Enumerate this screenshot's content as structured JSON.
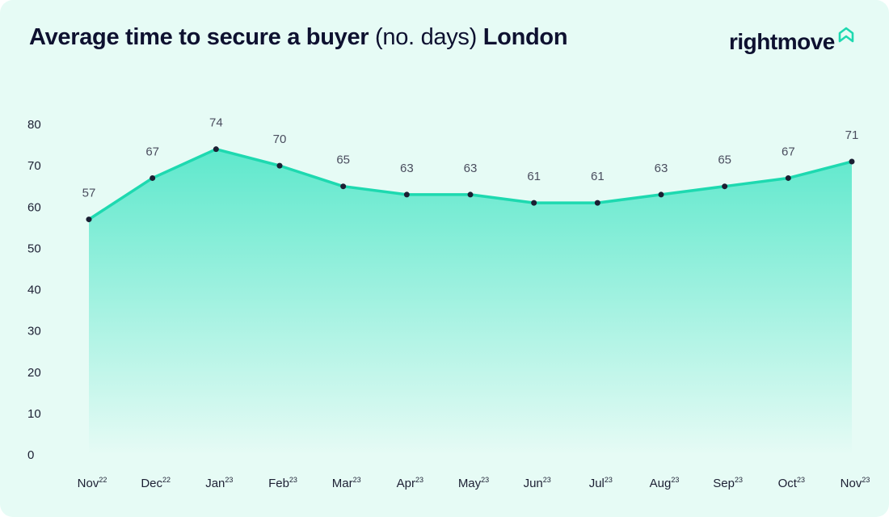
{
  "title": {
    "bold_part": "Average time to secure a buyer",
    "light_part": "(no. days)",
    "location": "London"
  },
  "logo": {
    "text": "rightmove",
    "icon": "house-icon"
  },
  "colors": {
    "line": "#1ed9b0",
    "fill_top": "#5ee8cc",
    "fill_bottom": "#e6fbf5",
    "point": "#1c1f33",
    "background": "#e6fbf5"
  },
  "chart_data": {
    "type": "area",
    "title": "Average time to secure a buyer (no. days) London",
    "categories": [
      {
        "month": "Nov",
        "year": "22"
      },
      {
        "month": "Dec",
        "year": "22"
      },
      {
        "month": "Jan",
        "year": "23"
      },
      {
        "month": "Feb",
        "year": "23"
      },
      {
        "month": "Mar",
        "year": "23"
      },
      {
        "month": "Apr",
        "year": "23"
      },
      {
        "month": "May",
        "year": "23"
      },
      {
        "month": "Jun",
        "year": "23"
      },
      {
        "month": "Jul",
        "year": "23"
      },
      {
        "month": "Aug",
        "year": "23"
      },
      {
        "month": "Sep",
        "year": "23"
      },
      {
        "month": "Oct",
        "year": "23"
      },
      {
        "month": "Nov",
        "year": "23"
      }
    ],
    "values": [
      57,
      67,
      74,
      70,
      65,
      63,
      63,
      61,
      61,
      63,
      65,
      67,
      71
    ],
    "ylim": [
      0,
      80
    ],
    "yticks": [
      0,
      10,
      20,
      30,
      40,
      50,
      60,
      70,
      80
    ],
    "grid": false,
    "legend": "none"
  }
}
